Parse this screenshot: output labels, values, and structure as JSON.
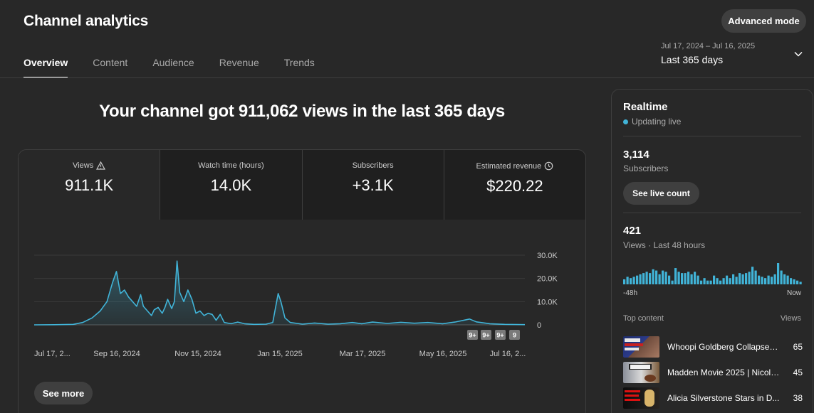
{
  "header": {
    "title": "Channel analytics",
    "advanced_mode": "Advanced mode",
    "tabs": [
      "Overview",
      "Content",
      "Audience",
      "Revenue",
      "Trends"
    ],
    "date_range": "Jul 17, 2024 – Jul 16, 2025",
    "date_label": "Last 365 days"
  },
  "main": {
    "headline": "Your channel got 911,062 views in the last 365 days",
    "metrics": [
      {
        "label": "Views",
        "value": "911.1K",
        "icon": "warning-icon"
      },
      {
        "label": "Watch time (hours)",
        "value": "14.0K"
      },
      {
        "label": "Subscribers",
        "value": "+3.1K"
      },
      {
        "label": "Estimated revenue",
        "value": "$220.22",
        "icon": "clock-icon"
      }
    ],
    "see_more": "See more",
    "badges": [
      "9+",
      "9+",
      "9+",
      "9"
    ]
  },
  "chart_data": {
    "type": "area",
    "series_color": "#41b4d8",
    "ylim": [
      0,
      30000
    ],
    "y_ticks": [
      "30.0K",
      "20.0K",
      "10.0K",
      "0"
    ],
    "x_ticks": [
      "Jul 17, 2...",
      "Sep 16, 2024",
      "Nov 15, 2024",
      "Jan 15, 2025",
      "Mar 17, 2025",
      "May 16, 2025",
      "Jul 16, 2..."
    ],
    "grid": true,
    "points": [
      [
        "2024-07-17",
        0
      ],
      [
        "2024-08-01",
        50
      ],
      [
        "2024-08-15",
        200
      ],
      [
        "2024-08-22",
        1000
      ],
      [
        "2024-08-29",
        3000
      ],
      [
        "2024-09-04",
        6000
      ],
      [
        "2024-09-09",
        10000
      ],
      [
        "2024-09-13",
        18000
      ],
      [
        "2024-09-16",
        23000
      ],
      [
        "2024-09-19",
        13500
      ],
      [
        "2024-09-22",
        15000
      ],
      [
        "2024-09-25",
        12000
      ],
      [
        "2024-09-28",
        10000
      ],
      [
        "2024-10-01",
        8000
      ],
      [
        "2024-10-04",
        13000
      ],
      [
        "2024-10-06",
        8000
      ],
      [
        "2024-10-09",
        6000
      ],
      [
        "2024-10-12",
        4000
      ],
      [
        "2024-10-14",
        6500
      ],
      [
        "2024-10-17",
        7500
      ],
      [
        "2024-10-20",
        5000
      ],
      [
        "2024-10-22",
        7500
      ],
      [
        "2024-10-24",
        11000
      ],
      [
        "2024-10-27",
        7000
      ],
      [
        "2024-10-29",
        10000
      ],
      [
        "2024-10-31",
        27500
      ],
      [
        "2024-11-02",
        14000
      ],
      [
        "2024-11-05",
        10000
      ],
      [
        "2024-11-08",
        15000
      ],
      [
        "2024-11-11",
        11000
      ],
      [
        "2024-11-14",
        5000
      ],
      [
        "2024-11-17",
        6000
      ],
      [
        "2024-11-20",
        4000
      ],
      [
        "2024-11-23",
        5000
      ],
      [
        "2024-11-26",
        4500
      ],
      [
        "2024-11-29",
        2000
      ],
      [
        "2024-12-02",
        4500
      ],
      [
        "2024-12-05",
        1000
      ],
      [
        "2024-12-10",
        500
      ],
      [
        "2024-12-15",
        1200
      ],
      [
        "2024-12-20",
        500
      ],
      [
        "2024-12-27",
        200
      ],
      [
        "2025-01-05",
        300
      ],
      [
        "2025-01-10",
        1000
      ],
      [
        "2025-01-14",
        13500
      ],
      [
        "2025-01-16",
        10000
      ],
      [
        "2025-01-19",
        3000
      ],
      [
        "2025-01-23",
        1000
      ],
      [
        "2025-02-01",
        300
      ],
      [
        "2025-02-10",
        800
      ],
      [
        "2025-02-20",
        300
      ],
      [
        "2025-03-01",
        500
      ],
      [
        "2025-03-10",
        1000
      ],
      [
        "2025-03-17",
        500
      ],
      [
        "2025-03-25",
        1200
      ],
      [
        "2025-04-05",
        600
      ],
      [
        "2025-04-15",
        1100
      ],
      [
        "2025-04-25",
        700
      ],
      [
        "2025-05-05",
        1000
      ],
      [
        "2025-05-16",
        500
      ],
      [
        "2025-05-25",
        1200
      ],
      [
        "2025-06-05",
        2500
      ],
      [
        "2025-06-10",
        1300
      ],
      [
        "2025-06-20",
        500
      ],
      [
        "2025-07-01",
        200
      ],
      [
        "2025-07-16",
        100
      ]
    ]
  },
  "realtime": {
    "title": "Realtime",
    "status": "Updating live",
    "subscribers_value": "3,114",
    "subscribers_label": "Subscribers",
    "see_live_count": "See live count",
    "views_value": "421",
    "views_label": "Views · Last 48 hours",
    "bars": [
      4,
      6,
      5,
      6,
      7,
      8,
      9,
      10,
      9,
      12,
      11,
      8,
      11,
      10,
      7,
      3,
      13,
      10,
      9,
      9,
      10,
      8,
      10,
      7,
      3,
      5,
      3,
      3,
      7,
      5,
      3,
      5,
      7,
      5,
      8,
      6,
      9,
      8,
      9,
      10,
      14,
      11,
      7,
      6,
      5,
      7,
      6,
      8,
      17,
      11,
      8,
      7,
      5,
      4,
      3,
      2
    ],
    "axis_start": "-48h",
    "axis_end": "Now",
    "top_content_label": "Top content",
    "views_col": "Views",
    "top_content": [
      {
        "title": "Whoopi Goldberg Collapses ...",
        "views": "65"
      },
      {
        "title": "Madden Movie 2025 | Nicola...",
        "views": "45"
      },
      {
        "title": "Alicia Silverstone Stars in D...",
        "views": "38"
      }
    ]
  }
}
